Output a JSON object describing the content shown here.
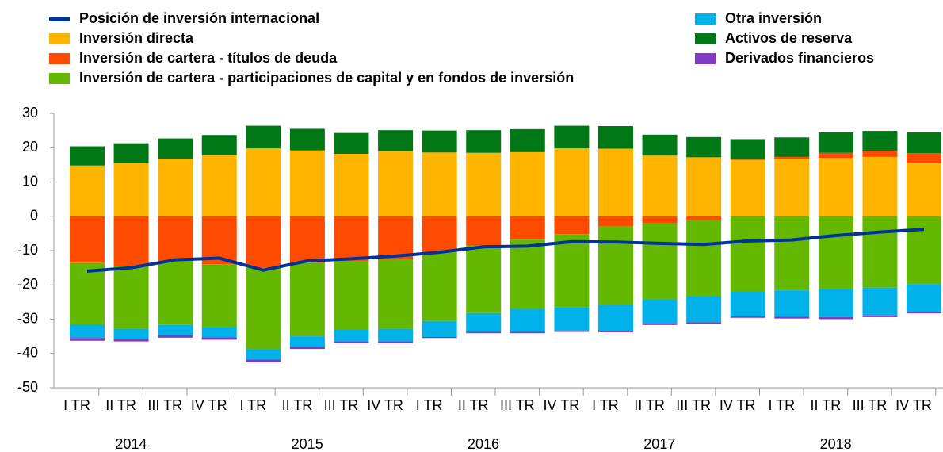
{
  "chart_data": {
    "type": "bar",
    "stacked": true,
    "categories": [
      "I TR",
      "II TR",
      "III TR",
      "IV TR",
      "I TR",
      "II TR",
      "III TR",
      "IV TR",
      "I TR",
      "II TR",
      "III TR",
      "IV TR",
      "I TR",
      "II TR",
      "III TR",
      "IV TR",
      "I TR",
      "II TR",
      "III TR",
      "IV TR"
    ],
    "year_labels": [
      "2014",
      "2015",
      "2016",
      "2017",
      "2018"
    ],
    "series": [
      {
        "name": "Posición de inversión internacional",
        "type": "line",
        "color": "#003299",
        "values": [
          -16,
          -15,
          -12.7,
          -12.2,
          -15.7,
          -13,
          -12.4,
          -11.6,
          -10.5,
          -8.9,
          -8.7,
          -7.4,
          -7.5,
          -7.9,
          -8.2,
          -7.2,
          -6.9,
          -5.6,
          -4.6,
          -3.8
        ]
      },
      {
        "name": "Inversión directa",
        "color": "#ffb400",
        "values": [
          14.8,
          15.5,
          16.8,
          17.8,
          19.8,
          19.2,
          18.2,
          19,
          18.6,
          18.5,
          18.7,
          19.8,
          19.7,
          17.7,
          17.2,
          16.4,
          16.8,
          17,
          17.3,
          15.4
        ]
      },
      {
        "name": "Inversión de cartera - títulos de deuda",
        "color": "#ff4b00",
        "values": [
          -13.5,
          -14.5,
          -13,
          -14,
          -15,
          -13.5,
          -13,
          -12.5,
          -10.5,
          -8.5,
          -6.8,
          -5.2,
          -3,
          -2.1,
          -1,
          0.3,
          0.5,
          1.5,
          1.8,
          3
        ]
      },
      {
        "name": "Inversión de cartera - participaciones de capital y en fondos de inversión",
        "color": "#65b800",
        "values": [
          -18,
          -18.3,
          -18.7,
          -18.3,
          -23.8,
          -21.5,
          -20,
          -20.3,
          -20,
          -19.7,
          -20.2,
          -21.3,
          -22.8,
          -22.1,
          -22.3,
          -21.8,
          -21.6,
          -21.2,
          -20.8,
          -19.8
        ]
      },
      {
        "name": "Otra inversión",
        "color": "#00b1ea",
        "values": [
          -4,
          -3,
          -3,
          -3,
          -3,
          -3,
          -3.5,
          -3.7,
          -4.7,
          -5.5,
          -6.7,
          -6.8,
          -7.6,
          -7.1,
          -7.6,
          -7.4,
          -7.7,
          -8.2,
          -8.1,
          -8
        ]
      },
      {
        "name": "Activos de reserva",
        "color": "#007816",
        "values": [
          5.6,
          5.8,
          5.9,
          5.9,
          6.6,
          6.3,
          6.1,
          6.1,
          6.4,
          6.6,
          6.7,
          6.6,
          6.6,
          6.1,
          5.9,
          5.8,
          5.7,
          6,
          5.8,
          6.1
        ]
      },
      {
        "name": "Derivados financieros",
        "color": "#8139c6",
        "values": [
          -0.8,
          -0.7,
          -0.7,
          -0.7,
          -0.8,
          -0.7,
          -0.5,
          -0.5,
          -0.3,
          -0.4,
          -0.4,
          -0.4,
          -0.4,
          -0.4,
          -0.4,
          -0.4,
          -0.5,
          -0.6,
          -0.5,
          -0.5
        ]
      }
    ],
    "ylim": [
      -50,
      30
    ],
    "yticks": [
      -50,
      -40,
      -30,
      -20,
      -10,
      0,
      10,
      20,
      30
    ],
    "grid": false
  }
}
